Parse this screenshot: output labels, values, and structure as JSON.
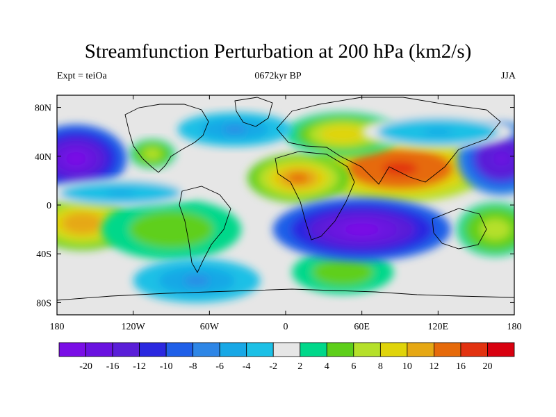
{
  "title": "Streamfunction Perturbation at 200 hPa (km2/s)",
  "left_string": "Expt = teiOa",
  "center_string": "0672kyr BP",
  "right_string": "JJA",
  "axes": {
    "lon_ticks": [
      {
        "lon": -180,
        "label": "180"
      },
      {
        "lon": -120,
        "label": "120W"
      },
      {
        "lon": -60,
        "label": "60W"
      },
      {
        "lon": 0,
        "label": "0"
      },
      {
        "lon": 60,
        "label": "60E"
      },
      {
        "lon": 120,
        "label": "120E"
      },
      {
        "lon": 180,
        "label": "180"
      }
    ],
    "lat_ticks": [
      {
        "lat": 80,
        "label": "80N"
      },
      {
        "lat": 40,
        "label": "40N"
      },
      {
        "lat": 0,
        "label": "0"
      },
      {
        "lat": -40,
        "label": "40S"
      },
      {
        "lat": -80,
        "label": "80S"
      }
    ]
  },
  "colorbar": {
    "colors": [
      "#7a0ee6",
      "#6a12e0",
      "#5a1ed8",
      "#2a28e0",
      "#1f5fe8",
      "#2e86e6",
      "#18a8e6",
      "#1cc0e6",
      "#e6e6e6",
      "#00d88a",
      "#5ecf1a",
      "#b5e02a",
      "#e0d40a",
      "#e6a814",
      "#e66a0a",
      "#e23210",
      "#d8000f"
    ],
    "labels": [
      "-20",
      "-16",
      "-12",
      "-10",
      "-8",
      "-6",
      "-4",
      "-2",
      "2",
      "4",
      "6",
      "8",
      "10",
      "12",
      "16",
      "20"
    ]
  },
  "field_blobs": [
    {
      "lon": 90,
      "lat": 30,
      "rx": 70,
      "ry": 28,
      "value": 18
    },
    {
      "lon": 10,
      "lat": 22,
      "rx": 40,
      "ry": 20,
      "value": 14
    },
    {
      "lon": 45,
      "lat": 58,
      "rx": 45,
      "ry": 18,
      "value": 10
    },
    {
      "lon": -160,
      "lat": -15,
      "rx": 40,
      "ry": 22,
      "value": 12
    },
    {
      "lon": -105,
      "lat": 42,
      "rx": 18,
      "ry": 12,
      "value": 8
    },
    {
      "lon": 165,
      "lat": -20,
      "rx": 30,
      "ry": 22,
      "value": 8
    },
    {
      "lon": -90,
      "lat": -20,
      "rx": 55,
      "ry": 25,
      "value": 6
    },
    {
      "lon": 45,
      "lat": -55,
      "rx": 40,
      "ry": 18,
      "value": 6
    },
    {
      "lon": -165,
      "lat": 38,
      "rx": 40,
      "ry": 28,
      "value": -20
    },
    {
      "lon": 170,
      "lat": 38,
      "rx": 35,
      "ry": 30,
      "value": -18
    },
    {
      "lon": 60,
      "lat": -20,
      "rx": 70,
      "ry": 26,
      "value": -20
    },
    {
      "lon": -40,
      "lat": 62,
      "rx": 45,
      "ry": 14,
      "value": -6
    },
    {
      "lon": -70,
      "lat": -62,
      "rx": 50,
      "ry": 18,
      "value": -6
    },
    {
      "lon": -130,
      "lat": 10,
      "rx": 60,
      "ry": 12,
      "value": -4
    },
    {
      "lon": 120,
      "lat": 60,
      "rx": 60,
      "ry": 14,
      "value": -4
    }
  ]
}
